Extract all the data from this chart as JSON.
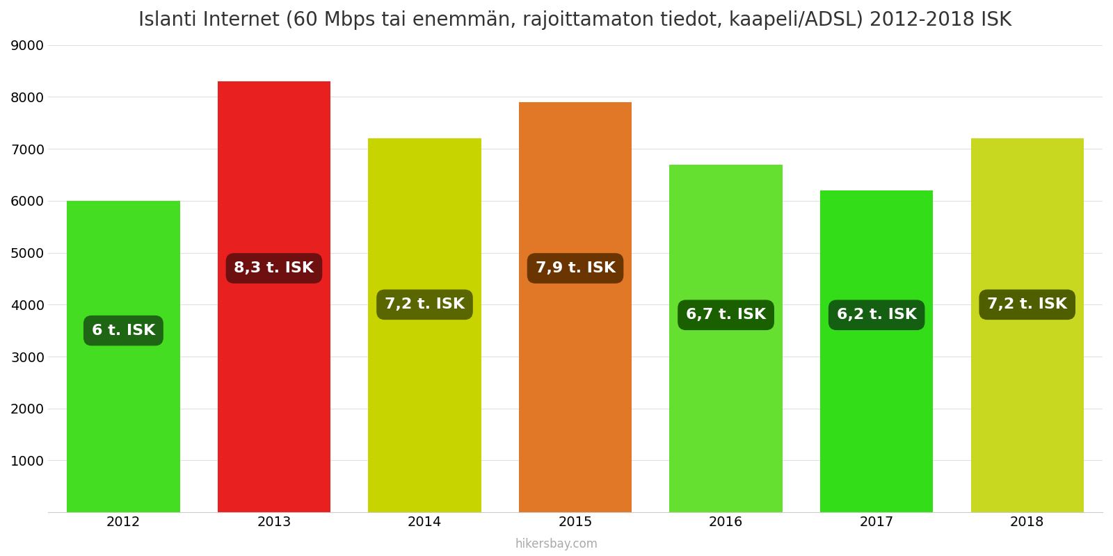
{
  "years": [
    2012,
    2013,
    2014,
    2015,
    2016,
    2017,
    2018
  ],
  "values": [
    6000,
    8300,
    7200,
    7900,
    6700,
    6200,
    7200
  ],
  "bar_colors": [
    "#44dd22",
    "#e82020",
    "#c8d400",
    "#e07828",
    "#66e030",
    "#33dd18",
    "#c8d820"
  ],
  "label_bg_colors": [
    "#1f6614",
    "#6e1010",
    "#5a6600",
    "#6a3500",
    "#1a5f00",
    "#155f12",
    "#4f5f00"
  ],
  "labels": [
    "6 t. ISK",
    "8,3 t. ISK",
    "7,2 t. ISK",
    "7,9 t. ISK",
    "6,7 t. ISK",
    "6,2 t. ISK",
    "7,2 t. ISK"
  ],
  "label_y_positions": [
    3500,
    4700,
    4000,
    4700,
    3800,
    3800,
    4000
  ],
  "title": "Islanti Internet (60 Mbps tai enemmän, rajoittamaton tiedot, kaapeli/ADSL) 2012-2018 ISK",
  "ylim": [
    0,
    9000
  ],
  "yticks": [
    0,
    1000,
    2000,
    3000,
    4000,
    5000,
    6000,
    7000,
    8000,
    9000
  ],
  "watermark": "hikersbay.com",
  "title_fontsize": 20,
  "label_fontsize": 16,
  "tick_fontsize": 14,
  "bar_width": 0.75,
  "background_color": "#ffffff"
}
